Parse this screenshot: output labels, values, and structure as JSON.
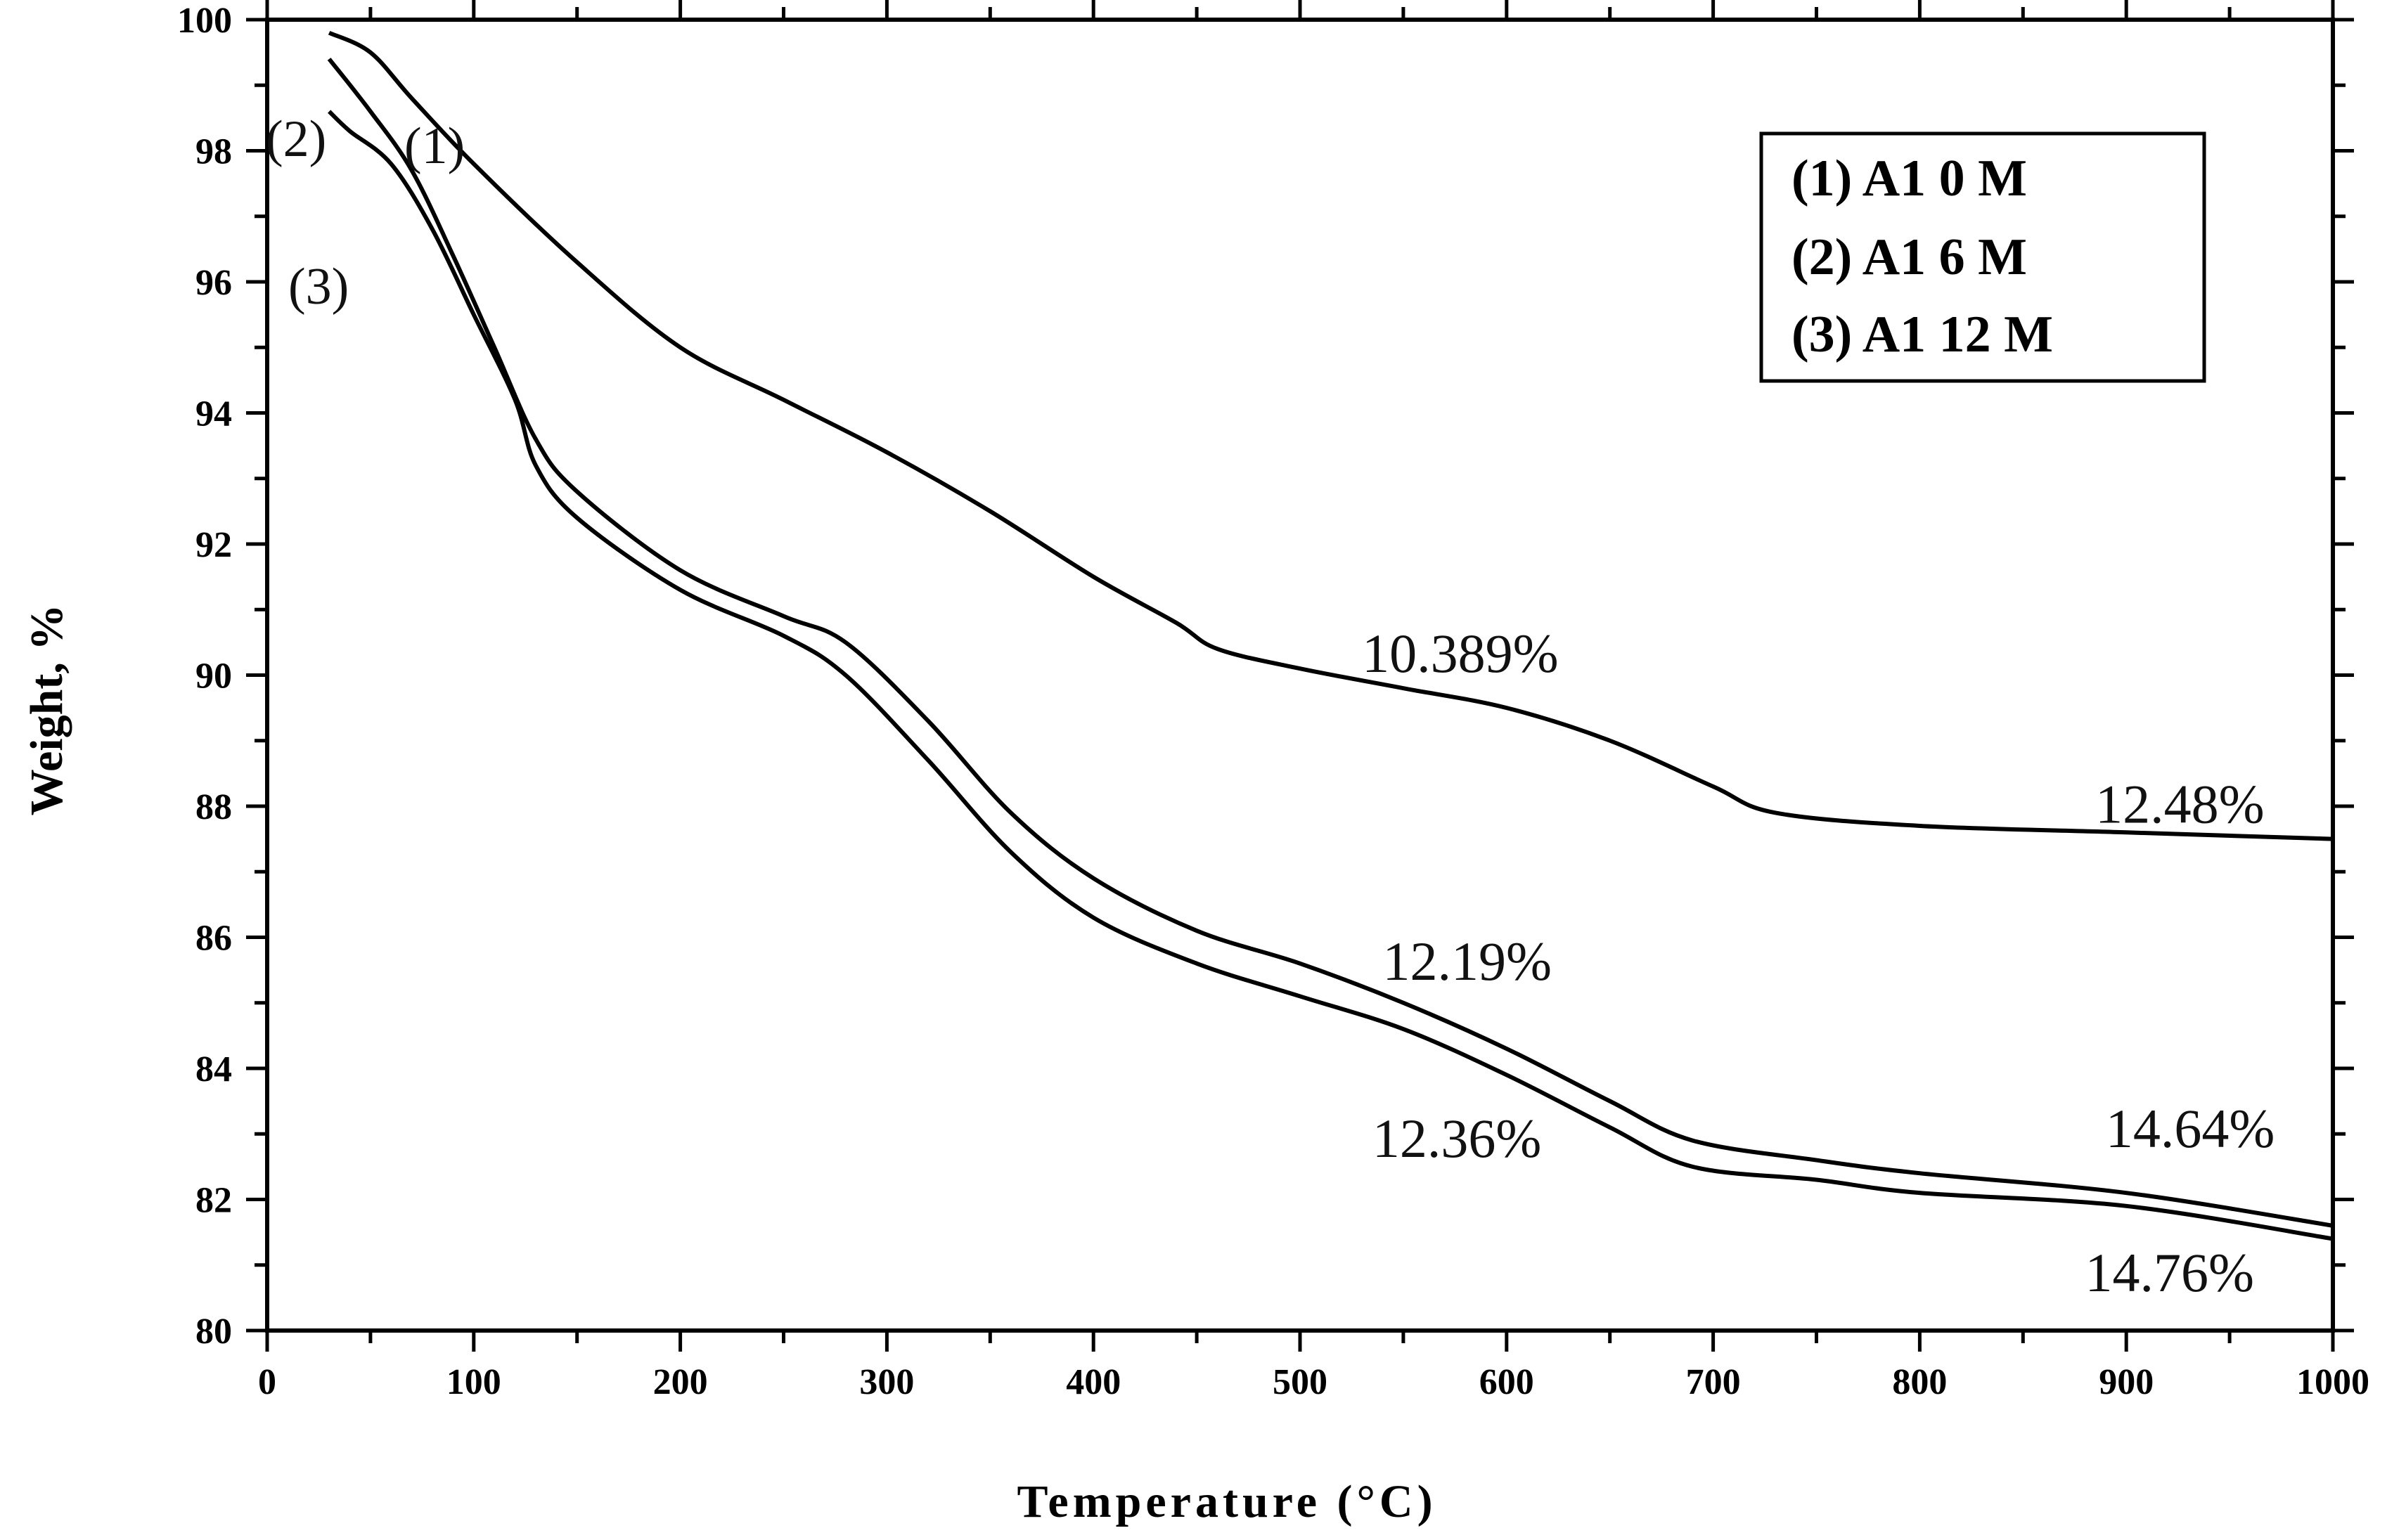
{
  "chart_data": {
    "type": "line",
    "title": "",
    "xlabel": "Temperature (°C)",
    "ylabel": "Weight, %",
    "xlim": [
      0,
      1000
    ],
    "ylim": [
      80,
      100
    ],
    "x_ticks": [
      0,
      100,
      200,
      300,
      400,
      500,
      600,
      700,
      800,
      900,
      1000
    ],
    "y_ticks": [
      80,
      82,
      84,
      86,
      88,
      90,
      92,
      94,
      96,
      98,
      100
    ],
    "grid": false,
    "legend_position": "top-right",
    "legend": [
      "(1) A1 0 M",
      "(2) A1 6 M",
      "(3) A1 12 M"
    ],
    "series": [
      {
        "name": "(1) A1 0 M",
        "tag": "(1)",
        "x": [
          30,
          50,
          70,
          100,
          150,
          200,
          250,
          300,
          350,
          400,
          440,
          460,
          500,
          550,
          600,
          650,
          700,
          730,
          800,
          900,
          1000
        ],
        "y": [
          99.8,
          99.5,
          98.8,
          97.8,
          96.3,
          95.0,
          94.2,
          93.4,
          92.5,
          91.5,
          90.8,
          90.4,
          90.1,
          89.8,
          89.5,
          89.0,
          88.3,
          87.9,
          87.7,
          87.6,
          87.5
        ]
      },
      {
        "name": "(2) A1 6 M",
        "tag": "(2)",
        "x": [
          30,
          50,
          70,
          90,
          110,
          130,
          150,
          200,
          250,
          280,
          320,
          360,
          400,
          450,
          500,
          550,
          600,
          650,
          690,
          750,
          800,
          900,
          1000
        ],
        "y": [
          99.4,
          98.6,
          97.7,
          96.4,
          95.0,
          93.6,
          92.8,
          91.6,
          90.9,
          90.5,
          89.3,
          87.9,
          86.9,
          86.1,
          85.6,
          85.0,
          84.3,
          83.5,
          82.9,
          82.6,
          82.4,
          82.1,
          81.6
        ]
      },
      {
        "name": "(3) A1 12 M",
        "tag": "(3)",
        "x": [
          30,
          40,
          60,
          80,
          100,
          120,
          130,
          150,
          200,
          250,
          280,
          320,
          360,
          400,
          450,
          500,
          550,
          600,
          650,
          690,
          750,
          800,
          900,
          1000
        ],
        "y": [
          98.6,
          98.3,
          97.8,
          96.8,
          95.5,
          94.2,
          93.2,
          92.4,
          91.3,
          90.6,
          90.0,
          88.7,
          87.3,
          86.3,
          85.6,
          85.1,
          84.6,
          83.9,
          83.1,
          82.5,
          82.3,
          82.1,
          81.9,
          81.4
        ]
      }
    ],
    "annotations": [
      {
        "text": "10.389%",
        "x": 530,
        "y": 90.05
      },
      {
        "text": "12.48%",
        "x": 885,
        "y": 87.75
      },
      {
        "text": "12.19%",
        "x": 540,
        "y": 85.35
      },
      {
        "text": "14.64%",
        "x": 890,
        "y": 82.8
      },
      {
        "text": "12.36%",
        "x": 535,
        "y": 82.65
      },
      {
        "text": "14.76%",
        "x": 880,
        "y": 80.6
      }
    ]
  }
}
